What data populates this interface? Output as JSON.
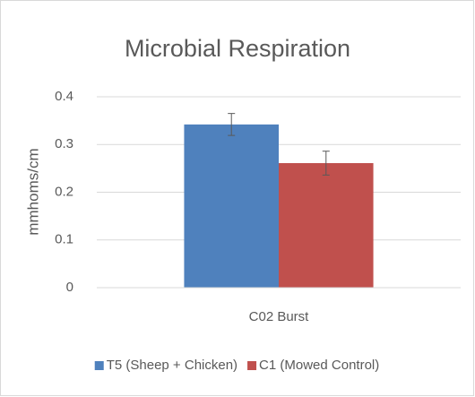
{
  "chart_data": {
    "type": "bar",
    "title": "Microbial Respiration",
    "y_label": "mmhoms/cm",
    "categories": [
      "C02 Burst"
    ],
    "series": [
      {
        "name": "T5 (Sheep + Chicken)",
        "color": "#4f81bd",
        "values": [
          0.342
        ],
        "errors": [
          0.023
        ]
      },
      {
        "name": "C1 (Mowed Control)",
        "color": "#c0504d",
        "values": [
          0.261
        ],
        "errors": [
          0.025
        ]
      }
    ],
    "ylim": [
      0,
      0.4
    ],
    "yticks": [
      0,
      0.1,
      0.2,
      0.3,
      0.4
    ],
    "grid": true,
    "legend": "bottom"
  }
}
